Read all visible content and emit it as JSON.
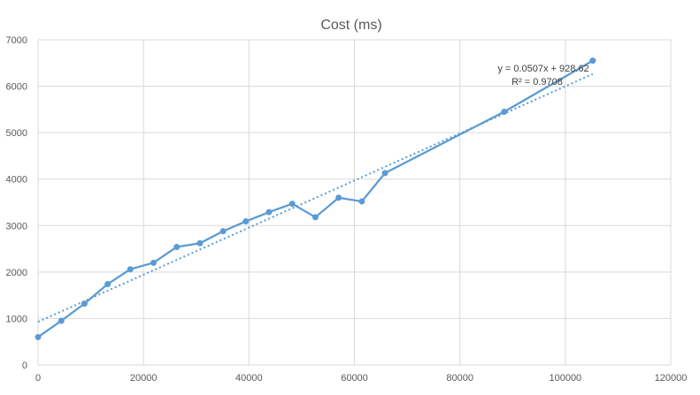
{
  "chart_data": {
    "type": "scatter",
    "title": "Cost (ms)",
    "xlabel": "",
    "ylabel": "",
    "xlim": [
      0,
      120000
    ],
    "ylim": [
      0,
      7000
    ],
    "xticks": [
      0,
      20000,
      40000,
      60000,
      80000,
      100000,
      120000
    ],
    "yticks": [
      0,
      1000,
      2000,
      3000,
      4000,
      5000,
      6000,
      7000
    ],
    "grid": true,
    "legend": "none",
    "series": [
      {
        "color": "#5b9bd5",
        "style": "line-with-markers",
        "x": [
          0,
          4400,
          8800,
          13200,
          17500,
          21900,
          26300,
          30700,
          35100,
          39400,
          43800,
          48200,
          52600,
          57000,
          61400,
          65800,
          88400,
          105200
        ],
        "y": [
          600,
          950,
          1320,
          1740,
          2060,
          2200,
          2540,
          2620,
          2880,
          3090,
          3290,
          3470,
          3180,
          3600,
          3520,
          4130,
          5450,
          6550
        ]
      }
    ],
    "trendline": {
      "type": "linear",
      "style": "dotted",
      "color": "#5b9bd5",
      "slope": 0.0507,
      "intercept": 928.62,
      "x_range": [
        0,
        105200
      ],
      "equation": "y = 0.0507x + 928.62",
      "r_squared": "R² = 0.9708"
    }
  }
}
